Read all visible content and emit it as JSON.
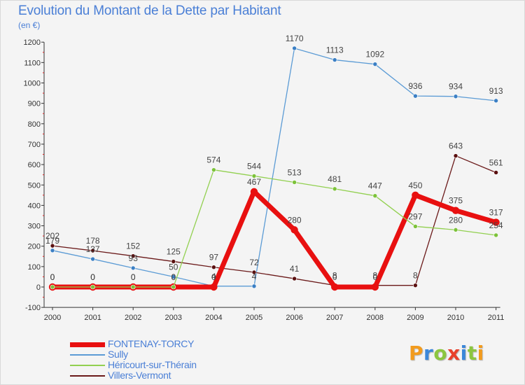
{
  "title": "Evolution du Montant de la Dette par Habitant",
  "subtitle": "(en €)",
  "logo": {
    "letters": [
      "P",
      "r",
      "o",
      "x",
      "i",
      "t",
      "i"
    ],
    "colors": [
      "#f29b1d",
      "#3b87d9",
      "#8cc63f",
      "#e8412c",
      "#3b87d9",
      "#8cc63f",
      "#f29b1d"
    ]
  },
  "chart_data": {
    "type": "line",
    "x": [
      "2000",
      "2001",
      "2002",
      "2003",
      "2004",
      "2005",
      "2006",
      "2007",
      "2008",
      "2009",
      "2010",
      "2011"
    ],
    "ylim": [
      -100,
      1200
    ],
    "yticks": [
      -100,
      0,
      100,
      200,
      300,
      400,
      500,
      600,
      700,
      800,
      900,
      1000,
      1100,
      1200
    ],
    "grid": false,
    "legend_position": "bottom-left",
    "series": [
      {
        "name": "FONTENAY-TORCY",
        "color": "#e81010",
        "values": [
          0,
          0,
          0,
          0,
          0,
          467,
          280,
          0,
          0,
          450,
          375,
          317
        ]
      },
      {
        "name": "Sully",
        "color": "#5b9bd5",
        "values": [
          179,
          137,
          93,
          50,
          4,
          4,
          1170,
          1113,
          1092,
          936,
          934,
          913
        ]
      },
      {
        "name": "Héricourt-sur-Thérain",
        "color": "#92d050",
        "values": [
          0,
          0,
          0,
          0,
          574,
          544,
          513,
          481,
          447,
          297,
          280,
          254
        ]
      },
      {
        "name": "Villers-Vermont",
        "color": "#6b1a1a",
        "values": [
          202,
          178,
          152,
          125,
          97,
          72,
          41,
          8,
          8,
          8,
          643,
          561
        ]
      }
    ]
  }
}
